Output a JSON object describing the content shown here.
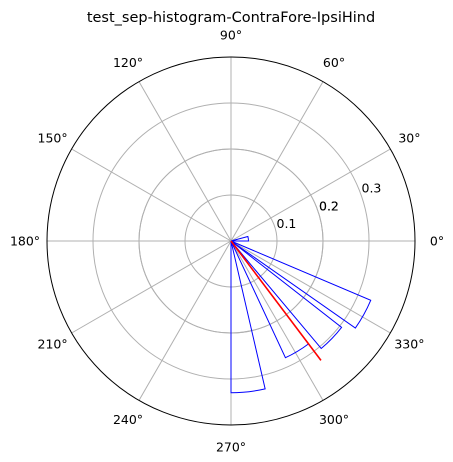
{
  "chart_data": {
    "type": "polar-histogram",
    "title": "test_sep-histogram-ContraFore-IpsiHind",
    "angle_ticks_deg": [
      0,
      30,
      60,
      90,
      120,
      150,
      180,
      210,
      240,
      270,
      300,
      330
    ],
    "angle_tick_labels": [
      "0°",
      "30°",
      "60°",
      "90°",
      "120°",
      "150°",
      "180°",
      "210°",
      "240°",
      "270°",
      "300°",
      "330°"
    ],
    "radial_ticks": [
      0.1,
      0.2,
      0.2,
      0.3
    ],
    "radial_tick_labels": [
      "0.1",
      "0.2",
      "0.2",
      "0.3"
    ],
    "rmax": 0.4,
    "grid": true,
    "bins": [
      {
        "theta_start_deg": 0,
        "theta_end_deg": 15,
        "value": 0.038
      },
      {
        "theta_start_deg": 325,
        "theta_end_deg": 337,
        "value": 0.33
      },
      {
        "theta_start_deg": 310,
        "theta_end_deg": 322,
        "value": 0.305
      },
      {
        "theta_start_deg": 295,
        "theta_end_deg": 307,
        "value": 0.28
      },
      {
        "theta_start_deg": 270,
        "theta_end_deg": 283,
        "value": 0.33
      }
    ],
    "mean_direction": {
      "angle_deg": 307,
      "length": 0.325
    },
    "colors": {
      "bars": "#0000ff",
      "mean": "#ff0000",
      "grid": "#b0b0b0",
      "frame": "#000000"
    }
  }
}
